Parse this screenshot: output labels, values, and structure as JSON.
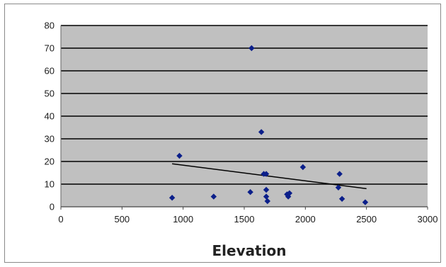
{
  "chart_data": {
    "type": "scatter",
    "title": "",
    "xlabel": "Elevation",
    "ylabel": "",
    "xlim": [
      0,
      3000
    ],
    "ylim": [
      0,
      80
    ],
    "xticks": [
      "0",
      "500",
      "1000",
      "1500",
      "2000",
      "2500",
      "3000"
    ],
    "yticks": [
      "0",
      "10",
      "20",
      "30",
      "40",
      "50",
      "60",
      "70",
      "80"
    ],
    "grid": {
      "horizontal": true,
      "vertical": false
    },
    "legend": "none",
    "colors": {
      "plot_background": "#c0c0c0",
      "gridline": "#000000",
      "marker": "#0b1f8a",
      "trendline": "#000000"
    },
    "series": [
      {
        "marker": "diamond",
        "points": [
          [
            910,
            4
          ],
          [
            970,
            22.5
          ],
          [
            1250,
            4.5
          ],
          [
            1550,
            6.5
          ],
          [
            1560,
            70
          ],
          [
            1640,
            33
          ],
          [
            1660,
            14.5
          ],
          [
            1680,
            14.5
          ],
          [
            1680,
            7.5
          ],
          [
            1680,
            4.5
          ],
          [
            1690,
            2.5
          ],
          [
            1850,
            5.5
          ],
          [
            1860,
            4.5
          ],
          [
            1870,
            6
          ],
          [
            1980,
            17.5
          ],
          [
            2270,
            8.5
          ],
          [
            2280,
            14.5
          ],
          [
            2300,
            3.5
          ],
          [
            2490,
            2
          ]
        ]
      }
    ],
    "trendline": {
      "type": "linear",
      "x": [
        910,
        2500
      ],
      "y": [
        19,
        8
      ]
    }
  }
}
